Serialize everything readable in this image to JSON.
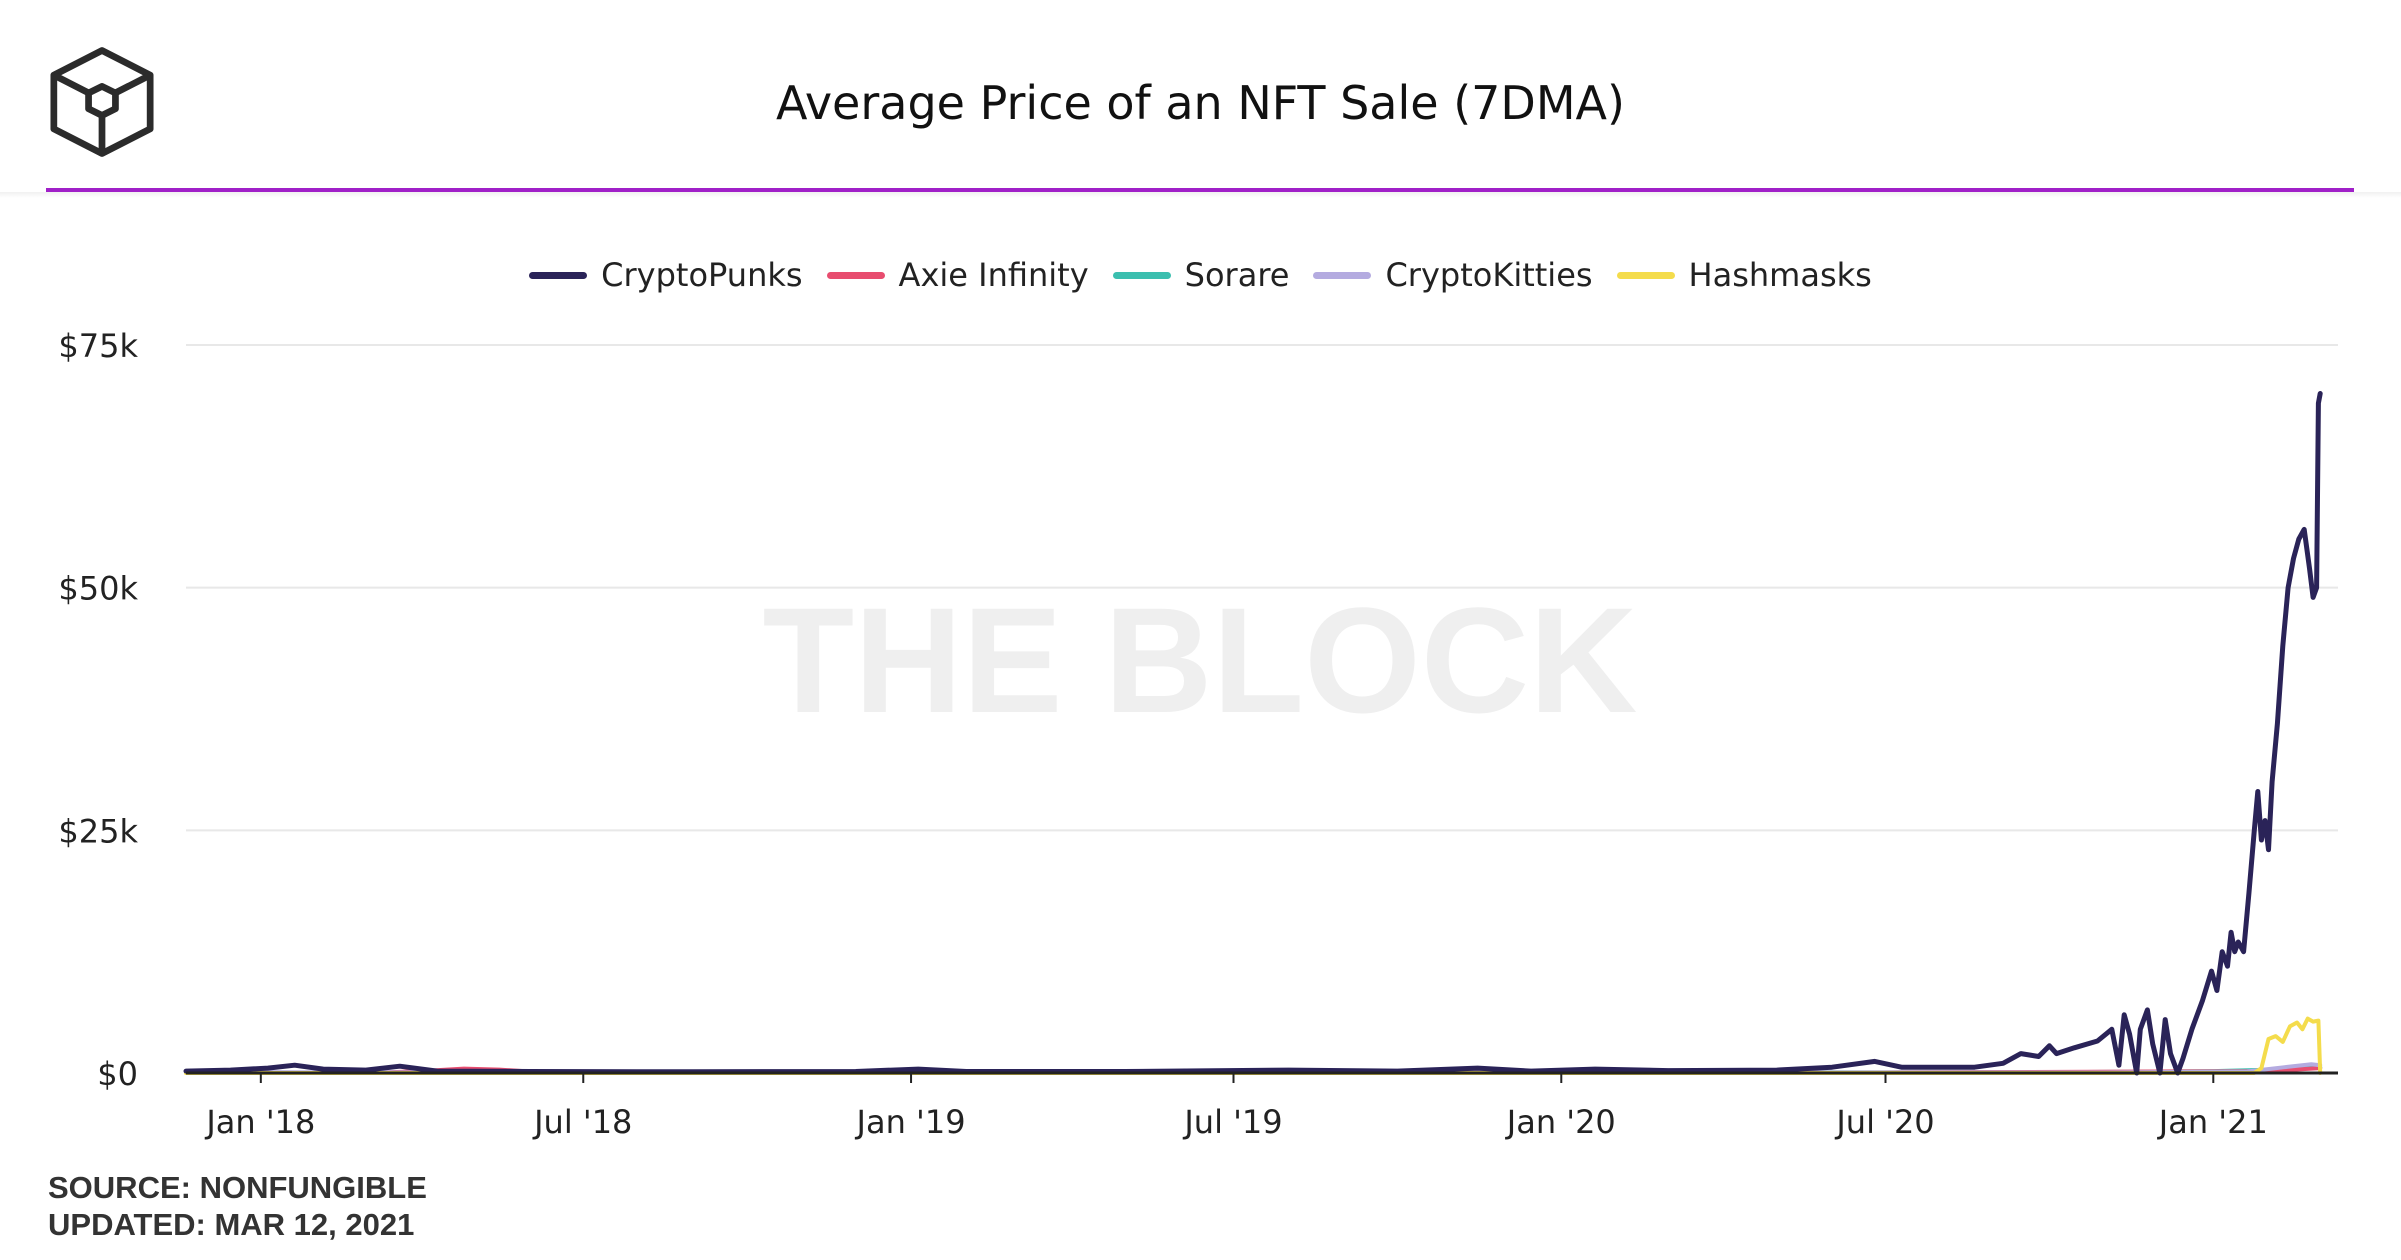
{
  "header": {
    "title": "Average Price of an NFT Sale (7DMA)",
    "logo_icon": "the-block-cube-logo-icon"
  },
  "watermark": "THE BLOCK",
  "footer": {
    "source": "SOURCE: NONFUNGIBLE",
    "updated": "UPDATED: MAR 12, 2021"
  },
  "colors": {
    "accent_line": "#a020c8",
    "grid": "#e8e8e8"
  },
  "chart_data": {
    "type": "line",
    "title": "Average Price of an NFT Sale (7DMA)",
    "xlabel": "",
    "ylabel": "",
    "x_range": [
      "2017-11-20",
      "2021-03-12"
    ],
    "ylim": [
      0,
      75000
    ],
    "y_ticks": [
      {
        "value": 0,
        "label": "$0"
      },
      {
        "value": 25000,
        "label": "$25k"
      },
      {
        "value": 50000,
        "label": "$50k"
      },
      {
        "value": 75000,
        "label": "$75k"
      }
    ],
    "x_ticks": [
      {
        "date": "2018-01-01",
        "label": "Jan '18"
      },
      {
        "date": "2018-07-01",
        "label": "Jul '18"
      },
      {
        "date": "2019-01-01",
        "label": "Jan '19"
      },
      {
        "date": "2019-07-01",
        "label": "Jul '19"
      },
      {
        "date": "2020-01-01",
        "label": "Jan '20"
      },
      {
        "date": "2020-07-01",
        "label": "Jul '20"
      },
      {
        "date": "2021-01-01",
        "label": "Jan '21"
      }
    ],
    "grid": true,
    "legend_position": "top-center",
    "series": [
      {
        "name": "CryptoPunks",
        "color": "#2a2358",
        "points": [
          [
            "2017-11-20",
            200
          ],
          [
            "2017-12-15",
            300
          ],
          [
            "2018-01-05",
            500
          ],
          [
            "2018-01-20",
            800
          ],
          [
            "2018-02-05",
            400
          ],
          [
            "2018-03-01",
            300
          ],
          [
            "2018-03-20",
            700
          ],
          [
            "2018-04-10",
            200
          ],
          [
            "2018-06-01",
            150
          ],
          [
            "2018-09-01",
            120
          ],
          [
            "2018-12-01",
            150
          ],
          [
            "2019-01-05",
            400
          ],
          [
            "2019-02-01",
            150
          ],
          [
            "2019-05-01",
            150
          ],
          [
            "2019-08-01",
            300
          ],
          [
            "2019-10-01",
            200
          ],
          [
            "2019-11-15",
            500
          ],
          [
            "2019-12-15",
            200
          ],
          [
            "2020-01-20",
            400
          ],
          [
            "2020-03-01",
            250
          ],
          [
            "2020-05-01",
            300
          ],
          [
            "2020-06-01",
            600
          ],
          [
            "2020-06-25",
            1200
          ],
          [
            "2020-07-10",
            600
          ],
          [
            "2020-08-20",
            600
          ],
          [
            "2020-09-05",
            1000
          ],
          [
            "2020-09-15",
            2000
          ],
          [
            "2020-09-25",
            1700
          ],
          [
            "2020-10-01",
            2800
          ],
          [
            "2020-10-05",
            2000
          ],
          [
            "2020-10-15",
            2600
          ],
          [
            "2020-10-28",
            3300
          ],
          [
            "2020-11-05",
            4500
          ],
          [
            "2020-11-09",
            800
          ],
          [
            "2020-11-12",
            6000
          ],
          [
            "2020-11-15",
            4000
          ],
          [
            "2020-11-19",
            0
          ],
          [
            "2020-11-21",
            4500
          ],
          [
            "2020-11-25",
            6500
          ],
          [
            "2020-11-28",
            3000
          ],
          [
            "2020-12-02",
            0
          ],
          [
            "2020-12-05",
            5500
          ],
          [
            "2020-12-08",
            2000
          ],
          [
            "2020-12-12",
            0
          ],
          [
            "2020-12-15",
            1500
          ],
          [
            "2020-12-20",
            4500
          ],
          [
            "2020-12-26",
            7500
          ],
          [
            "2020-12-31",
            10500
          ],
          [
            "2021-01-03",
            8500
          ],
          [
            "2021-01-06",
            12500
          ],
          [
            "2021-01-09",
            11000
          ],
          [
            "2021-01-11",
            14500
          ],
          [
            "2021-01-13",
            12500
          ],
          [
            "2021-01-15",
            13500
          ],
          [
            "2021-01-18",
            12500
          ],
          [
            "2021-01-21",
            18500
          ],
          [
            "2021-01-24",
            25000
          ],
          [
            "2021-01-26",
            29000
          ],
          [
            "2021-01-28",
            24000
          ],
          [
            "2021-01-30",
            26000
          ],
          [
            "2021-02-01",
            23000
          ],
          [
            "2021-02-03",
            30000
          ],
          [
            "2021-02-06",
            36000
          ],
          [
            "2021-02-09",
            44000
          ],
          [
            "2021-02-12",
            50000
          ],
          [
            "2021-02-15",
            53000
          ],
          [
            "2021-02-18",
            55000
          ],
          [
            "2021-02-21",
            56000
          ],
          [
            "2021-02-24",
            52000
          ],
          [
            "2021-02-26",
            49000
          ],
          [
            "2021-02-28",
            50000
          ],
          [
            "2021-03-01",
            69000
          ],
          [
            "2021-03-02",
            70000
          ]
        ]
      },
      {
        "name": "Axie Infinity",
        "color": "#e84d6f",
        "points": [
          [
            "2018-03-01",
            0
          ],
          [
            "2018-04-01",
            200
          ],
          [
            "2018-04-25",
            450
          ],
          [
            "2018-05-15",
            350
          ],
          [
            "2018-06-01",
            150
          ],
          [
            "2018-07-01",
            60
          ],
          [
            "2019-06-01",
            30
          ],
          [
            "2020-06-01",
            30
          ],
          [
            "2021-02-01",
            200
          ],
          [
            "2021-03-02",
            500
          ]
        ]
      },
      {
        "name": "Sorare",
        "color": "#3bbfaf",
        "points": [
          [
            "2019-05-01",
            0
          ],
          [
            "2020-01-01",
            40
          ],
          [
            "2020-10-01",
            80
          ],
          [
            "2021-01-01",
            200
          ],
          [
            "2021-02-15",
            400
          ],
          [
            "2021-03-02",
            600
          ]
        ]
      },
      {
        "name": "CryptoKitties",
        "color": "#b4abe0",
        "points": [
          [
            "2017-11-20",
            120
          ],
          [
            "2018-02-01",
            60
          ],
          [
            "2019-01-01",
            30
          ],
          [
            "2020-01-01",
            30
          ],
          [
            "2020-11-01",
            50
          ],
          [
            "2021-01-20",
            150
          ],
          [
            "2021-02-10",
            600
          ],
          [
            "2021-02-25",
            900
          ],
          [
            "2021-03-02",
            800
          ]
        ]
      },
      {
        "name": "Hashmasks",
        "color": "#f4dc4c",
        "points": [
          [
            "2017-11-20",
            0
          ],
          [
            "2021-01-24",
            0
          ],
          [
            "2021-01-28",
            500
          ],
          [
            "2021-02-01",
            3500
          ],
          [
            "2021-02-05",
            3800
          ],
          [
            "2021-02-09",
            3200
          ],
          [
            "2021-02-13",
            4800
          ],
          [
            "2021-02-17",
            5200
          ],
          [
            "2021-02-20",
            4500
          ],
          [
            "2021-02-23",
            5600
          ],
          [
            "2021-02-26",
            5300
          ],
          [
            "2021-03-01",
            5400
          ],
          [
            "2021-03-02",
            0
          ]
        ]
      }
    ]
  }
}
